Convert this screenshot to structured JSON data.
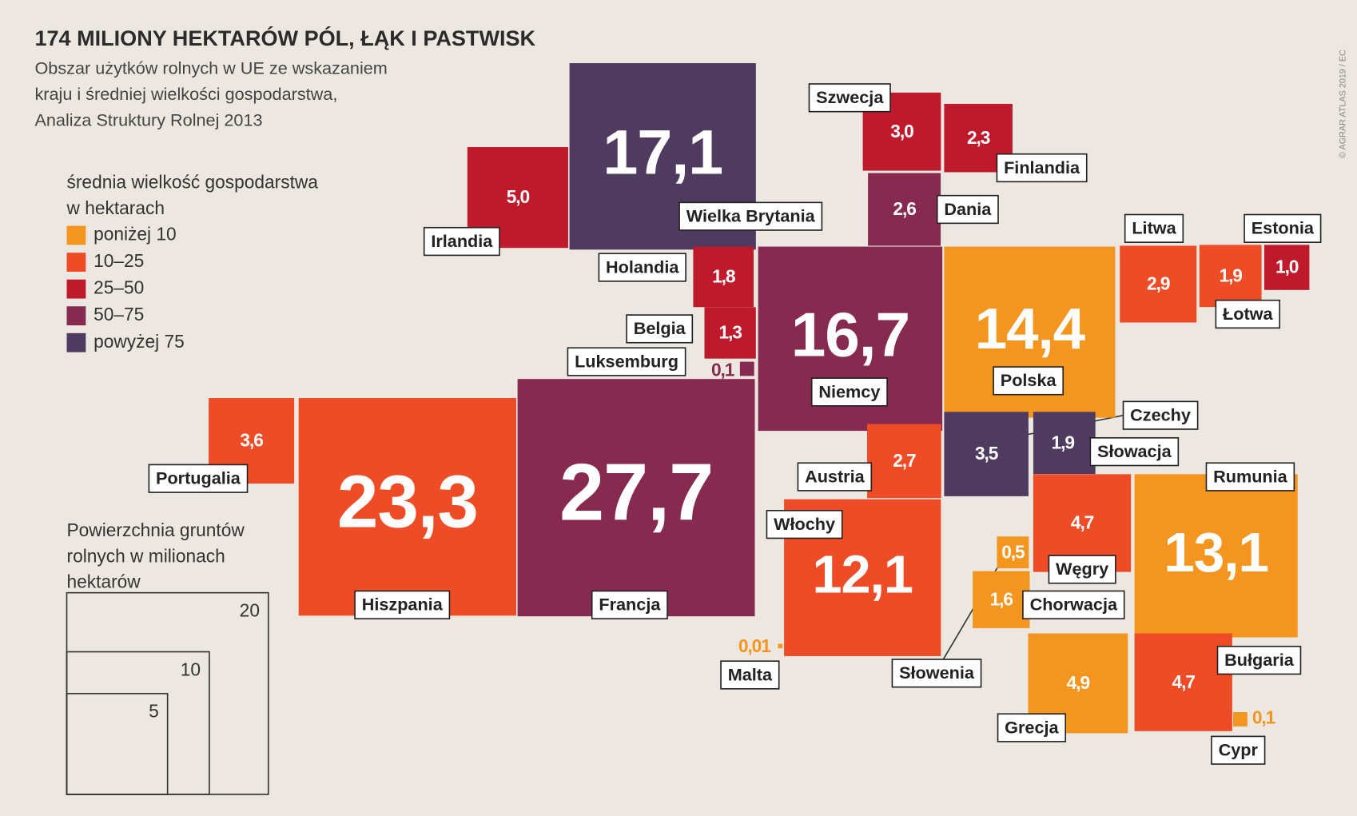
{
  "chart_data": {
    "type": "cartogram",
    "title": "174 MILIONY HEKTARÓW PÓL, ŁĄK I PASTWISK",
    "subtitle": [
      "Obszar użytków rolnych w UE ze wskazaniem",
      "kraju i średniej wielkości gospodarstwa,",
      "Analiza Struktury Rolnej 2013"
    ],
    "credit": "© AGRAR ATLAS 2019 / EC",
    "legend": {
      "title": [
        "średnia wielkość gospodarstwa",
        "w hektarach"
      ],
      "classes": [
        {
          "label": "poniżej 10",
          "color": "#f4951f"
        },
        {
          "label": "10–25",
          "color": "#ee4c27"
        },
        {
          "label": "25–50",
          "color": "#be1a2c"
        },
        {
          "label": "50–75",
          "color": "#862a50"
        },
        {
          "label": "powyżej 75",
          "color": "#4f3b5f"
        }
      ]
    },
    "size_legend": {
      "title": [
        "Powierzchnia gruntów",
        "rolnych w milionach",
        "hektarów"
      ],
      "values": [
        20,
        10,
        5
      ]
    },
    "categories": [
      "Irlandia",
      "Wielka Brytania",
      "Szwecja",
      "Finlandia",
      "Dania",
      "Holandia",
      "Belgia",
      "Luksemburg",
      "Niemcy",
      "Polska",
      "Litwa",
      "Łotwa",
      "Estonia",
      "Portugalia",
      "Hiszpania",
      "Francja",
      "Austria",
      "Czechy",
      "Słowacja",
      "Włochy",
      "Węgry",
      "Rumunia",
      "Słowenia",
      "Chorwacja",
      "Malta",
      "Grecja",
      "Bułgaria",
      "Cypr"
    ],
    "values": [
      5.0,
      17.1,
      3.0,
      2.3,
      2.6,
      1.8,
      1.3,
      0.1,
      16.7,
      14.4,
      2.9,
      1.9,
      1.0,
      3.6,
      23.3,
      27.7,
      2.7,
      3.5,
      1.9,
      12.1,
      4.7,
      13.1,
      0.5,
      1.6,
      0.01,
      4.9,
      4.7,
      0.1
    ],
    "value_labels": [
      "5,0",
      "17,1",
      "3,0",
      "2,3",
      "2,6",
      "1,8",
      "1,3",
      "0,1",
      "16,7",
      "14,4",
      "2,9",
      "1,9",
      "1,0",
      "3,6",
      "23,3",
      "27,7",
      "2,7",
      "3,5",
      "1,9",
      "12,1",
      "4,7",
      "13,1",
      "0,5",
      "1,6",
      "0,01",
      "4,9",
      "4,7",
      "0,1"
    ],
    "size_class": [
      2,
      4,
      2,
      2,
      3,
      2,
      2,
      3,
      3,
      0,
      1,
      1,
      2,
      1,
      1,
      3,
      1,
      4,
      4,
      1,
      1,
      0,
      0,
      0,
      0,
      0,
      1,
      0
    ]
  }
}
